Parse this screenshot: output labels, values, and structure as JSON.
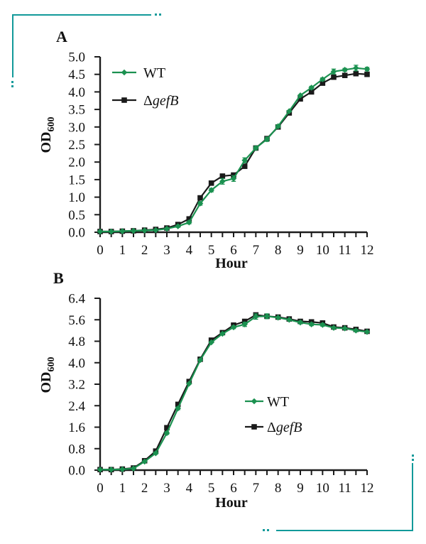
{
  "colors": {
    "accent_teal": "#129a9a",
    "wt_green": "#1b9150",
    "mutant_black": "#1a1a1a"
  },
  "chart_data": [
    {
      "type": "line",
      "panel_label": "A",
      "title": "",
      "xlabel": "Hour",
      "ylabel": "OD",
      "ylabel_subscript": "600",
      "xlim": [
        0,
        12
      ],
      "ylim": [
        0,
        5.0
      ],
      "x_minor_tick_step": 0.5,
      "x_tick_labels": [
        "0",
        "1",
        "2",
        "3",
        "4",
        "5",
        "6",
        "7",
        "8",
        "9",
        "10",
        "11",
        "12"
      ],
      "y_tick_labels": [
        "0.0",
        "0.5",
        "1.0",
        "1.5",
        "2.0",
        "2.5",
        "3.0",
        "3.5",
        "4.0",
        "4.5",
        "5.0"
      ],
      "grid": false,
      "legend_position": "top-left-inside",
      "x": [
        0,
        0.5,
        1,
        1.5,
        2,
        2.5,
        3,
        3.5,
        4,
        4.5,
        5,
        5.5,
        6,
        6.5,
        7,
        7.5,
        8,
        8.5,
        9,
        9.5,
        10,
        10.5,
        11,
        11.5,
        12
      ],
      "series": [
        {
          "name": "WT",
          "marker": "diamond",
          "color": "#1b9150",
          "values": [
            0.02,
            0.02,
            0.03,
            0.04,
            0.05,
            0.06,
            0.1,
            0.17,
            0.28,
            0.82,
            1.2,
            1.45,
            1.53,
            2.05,
            2.4,
            2.65,
            3.02,
            3.45,
            3.9,
            4.12,
            4.36,
            4.58,
            4.63,
            4.68,
            4.65
          ],
          "errors": [
            0,
            0,
            0,
            0,
            0,
            0,
            0,
            0.03,
            0.04,
            0.05,
            0.05,
            0.08,
            0.08,
            0.07,
            0.05,
            0.06,
            0.04,
            0,
            0,
            0.04,
            0.04,
            0.07,
            0.04,
            0.08,
            0.05
          ]
        },
        {
          "name": "ΔgefB",
          "marker": "square",
          "color": "#1a1a1a",
          "values": [
            0.02,
            0.02,
            0.03,
            0.04,
            0.06,
            0.08,
            0.12,
            0.22,
            0.38,
            0.98,
            1.4,
            1.6,
            1.63,
            1.88,
            2.4,
            2.67,
            3.0,
            3.4,
            3.8,
            4.0,
            4.25,
            4.42,
            4.47,
            4.52,
            4.5
          ],
          "errors": [
            0,
            0,
            0,
            0,
            0,
            0,
            0,
            0,
            0,
            0,
            0,
            0,
            0,
            0,
            0,
            0,
            0,
            0,
            0,
            0,
            0,
            0,
            0,
            0,
            0
          ]
        }
      ]
    },
    {
      "type": "line",
      "panel_label": "B",
      "title": "",
      "xlabel": "Hour",
      "ylabel": "OD",
      "ylabel_subscript": "600",
      "xlim": [
        0,
        12
      ],
      "ylim": [
        0,
        6.4
      ],
      "x_minor_tick_step": 0.5,
      "x_tick_labels": [
        "0",
        "1",
        "2",
        "3",
        "4",
        "5",
        "6",
        "7",
        "8",
        "9",
        "10",
        "11",
        "12"
      ],
      "y_tick_labels": [
        "0.0",
        "0.8",
        "1.6",
        "2.4",
        "3.2",
        "4.0",
        "4.8",
        "5.6",
        "6.4"
      ],
      "grid": false,
      "legend_position": "center-right-inside",
      "x": [
        0,
        0.5,
        1,
        1.5,
        2,
        2.5,
        3,
        3.5,
        4,
        4.5,
        5,
        5.5,
        6,
        6.5,
        7,
        7.5,
        8,
        8.5,
        9,
        9.5,
        10,
        10.5,
        11,
        11.5,
        12
      ],
      "series": [
        {
          "name": "WT",
          "marker": "diamond",
          "color": "#1b9150",
          "values": [
            0.02,
            0.02,
            0.03,
            0.06,
            0.32,
            0.63,
            1.38,
            2.3,
            3.22,
            4.1,
            4.76,
            5.08,
            5.32,
            5.43,
            5.72,
            5.73,
            5.68,
            5.6,
            5.5,
            5.43,
            5.41,
            5.3,
            5.28,
            5.2,
            5.15
          ],
          "errors": [
            0,
            0,
            0,
            0,
            0,
            0.04,
            0.05,
            0.05,
            0,
            0,
            0,
            0,
            0.05,
            0.08,
            0.1,
            0.09,
            0,
            0,
            0.05,
            0.05,
            0.05,
            0,
            0,
            0.04,
            0
          ]
        },
        {
          "name": "ΔgefB",
          "marker": "square",
          "color": "#1a1a1a",
          "values": [
            0.02,
            0.02,
            0.04,
            0.08,
            0.35,
            0.71,
            1.58,
            2.45,
            3.3,
            4.13,
            4.84,
            5.12,
            5.4,
            5.54,
            5.78,
            5.73,
            5.7,
            5.63,
            5.54,
            5.52,
            5.48,
            5.33,
            5.3,
            5.24,
            5.17
          ],
          "errors": [
            0,
            0,
            0,
            0,
            0,
            0,
            0,
            0,
            0,
            0,
            0,
            0,
            0,
            0.04,
            0.07,
            0,
            0,
            0,
            0,
            0,
            0,
            0,
            0,
            0,
            0
          ]
        }
      ]
    }
  ]
}
